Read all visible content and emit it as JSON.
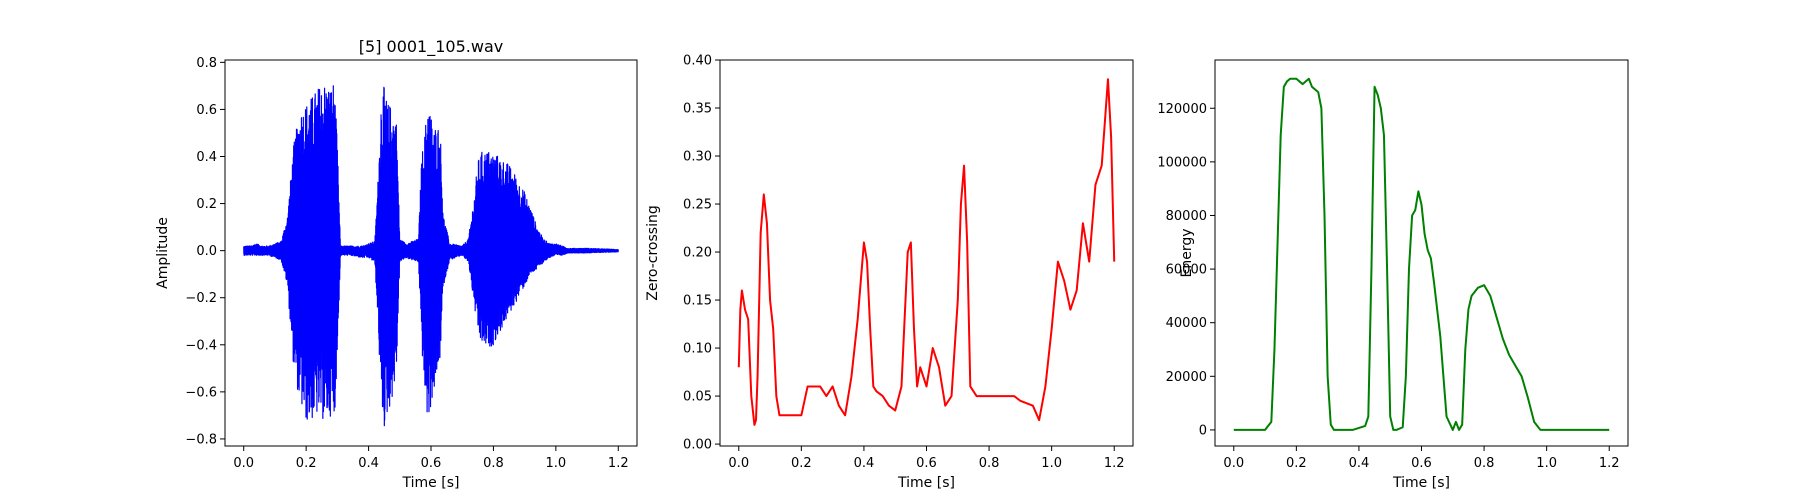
{
  "chart_data": [
    {
      "type": "line",
      "title": "[5] 0001_105.wav",
      "xlabel": "Time [s]",
      "ylabel": "Amplitude",
      "xlim": [
        -0.06,
        1.26
      ],
      "ylim": [
        -0.83,
        0.81
      ],
      "xticks": [
        0.0,
        0.2,
        0.4,
        0.6,
        0.8,
        1.0,
        1.2
      ],
      "xtick_labels": [
        "0.0",
        "0.2",
        "0.4",
        "0.6",
        "0.8",
        "1.0",
        "1.2"
      ],
      "yticks": [
        -0.8,
        -0.6,
        -0.4,
        -0.2,
        0.0,
        0.2,
        0.4,
        0.6,
        0.8
      ],
      "ytick_labels": [
        "−0.8",
        "−0.6",
        "−0.4",
        "−0.2",
        "0.0",
        "0.2",
        "0.4",
        "0.6",
        "0.8"
      ],
      "grid": false,
      "color": "#0000ff",
      "envelope": {
        "t": [
          0.0,
          0.02,
          0.04,
          0.06,
          0.08,
          0.1,
          0.12,
          0.14,
          0.16,
          0.18,
          0.2,
          0.22,
          0.24,
          0.26,
          0.28,
          0.29,
          0.3,
          0.31,
          0.34,
          0.38,
          0.4,
          0.42,
          0.43,
          0.44,
          0.45,
          0.46,
          0.47,
          0.48,
          0.49,
          0.5,
          0.52,
          0.54,
          0.56,
          0.57,
          0.58,
          0.59,
          0.6,
          0.61,
          0.62,
          0.63,
          0.64,
          0.66,
          0.7,
          0.72,
          0.74,
          0.75,
          0.76,
          0.78,
          0.8,
          0.82,
          0.84,
          0.86,
          0.88,
          0.9,
          0.92,
          0.94,
          0.96,
          0.98,
          1.0,
          1.02,
          1.04,
          1.1,
          1.2
        ],
        "upper": [
          0.02,
          0.02,
          0.03,
          0.02,
          0.02,
          0.03,
          0.04,
          0.15,
          0.45,
          0.6,
          0.63,
          0.66,
          0.7,
          0.72,
          0.7,
          0.73,
          0.45,
          0.02,
          0.02,
          0.02,
          0.03,
          0.04,
          0.3,
          0.65,
          0.7,
          0.63,
          0.62,
          0.6,
          0.55,
          0.05,
          0.03,
          0.04,
          0.05,
          0.4,
          0.5,
          0.65,
          0.58,
          0.52,
          0.55,
          0.5,
          0.15,
          0.03,
          0.02,
          0.05,
          0.25,
          0.38,
          0.42,
          0.43,
          0.42,
          0.4,
          0.38,
          0.35,
          0.3,
          0.25,
          0.18,
          0.1,
          0.05,
          0.03,
          0.03,
          0.02,
          0.01,
          0.01,
          0.005
        ],
        "lower": [
          -0.02,
          -0.02,
          -0.02,
          -0.02,
          -0.02,
          -0.03,
          -0.04,
          -0.15,
          -0.5,
          -0.65,
          -0.73,
          -0.72,
          -0.7,
          -0.73,
          -0.7,
          -0.74,
          -0.45,
          -0.02,
          -0.02,
          -0.03,
          -0.03,
          -0.05,
          -0.3,
          -0.65,
          -0.76,
          -0.7,
          -0.66,
          -0.6,
          -0.5,
          -0.05,
          -0.03,
          -0.04,
          -0.05,
          -0.4,
          -0.62,
          -0.74,
          -0.66,
          -0.6,
          -0.55,
          -0.45,
          -0.15,
          -0.04,
          -0.02,
          -0.05,
          -0.25,
          -0.35,
          -0.4,
          -0.42,
          -0.4,
          -0.35,
          -0.3,
          -0.25,
          -0.2,
          -0.15,
          -0.1,
          -0.08,
          -0.05,
          -0.03,
          -0.02,
          -0.02,
          -0.01,
          -0.01,
          -0.005
        ]
      }
    },
    {
      "type": "line",
      "xlabel": "Time [s]",
      "ylabel": "Zero-crossing",
      "xlim": [
        -0.06,
        1.26
      ],
      "ylim": [
        -0.002,
        0.4
      ],
      "xticks": [
        0.0,
        0.2,
        0.4,
        0.6,
        0.8,
        1.0,
        1.2
      ],
      "xtick_labels": [
        "0.0",
        "0.2",
        "0.4",
        "0.6",
        "0.8",
        "1.0",
        "1.2"
      ],
      "yticks": [
        0.0,
        0.05,
        0.1,
        0.15,
        0.2,
        0.25,
        0.3,
        0.35,
        0.4
      ],
      "ytick_labels": [
        "0.00",
        "0.05",
        "0.10",
        "0.15",
        "0.20",
        "0.25",
        "0.30",
        "0.35",
        "0.40"
      ],
      "grid": false,
      "color": "#ff0000",
      "x": [
        0.0,
        0.005,
        0.01,
        0.02,
        0.03,
        0.04,
        0.05,
        0.055,
        0.06,
        0.07,
        0.08,
        0.09,
        0.1,
        0.11,
        0.12,
        0.13,
        0.14,
        0.16,
        0.18,
        0.2,
        0.22,
        0.24,
        0.26,
        0.28,
        0.3,
        0.32,
        0.34,
        0.36,
        0.38,
        0.4,
        0.41,
        0.42,
        0.43,
        0.44,
        0.46,
        0.48,
        0.5,
        0.52,
        0.54,
        0.55,
        0.56,
        0.57,
        0.58,
        0.6,
        0.62,
        0.64,
        0.66,
        0.68,
        0.7,
        0.71,
        0.72,
        0.73,
        0.74,
        0.76,
        0.8,
        0.84,
        0.88,
        0.9,
        0.94,
        0.96,
        0.98,
        1.0,
        1.02,
        1.04,
        1.06,
        1.08,
        1.1,
        1.12,
        1.14,
        1.16,
        1.18,
        1.19,
        1.2
      ],
      "y": [
        0.08,
        0.14,
        0.16,
        0.14,
        0.13,
        0.05,
        0.02,
        0.025,
        0.07,
        0.22,
        0.26,
        0.23,
        0.15,
        0.12,
        0.05,
        0.03,
        0.03,
        0.03,
        0.03,
        0.03,
        0.06,
        0.06,
        0.06,
        0.05,
        0.06,
        0.04,
        0.03,
        0.07,
        0.13,
        0.21,
        0.19,
        0.12,
        0.06,
        0.055,
        0.05,
        0.04,
        0.035,
        0.06,
        0.2,
        0.21,
        0.12,
        0.06,
        0.08,
        0.06,
        0.1,
        0.08,
        0.04,
        0.05,
        0.15,
        0.25,
        0.29,
        0.21,
        0.06,
        0.05,
        0.05,
        0.05,
        0.05,
        0.045,
        0.04,
        0.025,
        0.06,
        0.12,
        0.19,
        0.17,
        0.14,
        0.16,
        0.23,
        0.19,
        0.27,
        0.29,
        0.38,
        0.32,
        0.19
      ]
    },
    {
      "type": "line",
      "xlabel": "Time [s]",
      "ylabel": "Energy",
      "xlim": [
        -0.06,
        1.26
      ],
      "ylim": [
        -6000,
        138000
      ],
      "xticks": [
        0.0,
        0.2,
        0.4,
        0.6,
        0.8,
        1.0,
        1.2
      ],
      "xtick_labels": [
        "0.0",
        "0.2",
        "0.4",
        "0.6",
        "0.8",
        "1.0",
        "1.2"
      ],
      "yticks": [
        0,
        20000,
        40000,
        60000,
        80000,
        100000,
        120000
      ],
      "ytick_labels": [
        "0",
        "20000",
        "40000",
        "60000",
        "80000",
        "100000",
        "120000"
      ],
      "grid": false,
      "color": "#008000",
      "x": [
        0.0,
        0.1,
        0.12,
        0.13,
        0.14,
        0.15,
        0.16,
        0.17,
        0.18,
        0.2,
        0.21,
        0.22,
        0.24,
        0.25,
        0.26,
        0.27,
        0.28,
        0.29,
        0.3,
        0.31,
        0.32,
        0.38,
        0.42,
        0.43,
        0.44,
        0.45,
        0.46,
        0.47,
        0.48,
        0.49,
        0.5,
        0.51,
        0.52,
        0.54,
        0.55,
        0.56,
        0.57,
        0.58,
        0.59,
        0.6,
        0.61,
        0.62,
        0.63,
        0.64,
        0.65,
        0.66,
        0.68,
        0.7,
        0.71,
        0.72,
        0.73,
        0.74,
        0.75,
        0.76,
        0.78,
        0.8,
        0.82,
        0.84,
        0.86,
        0.88,
        0.9,
        0.92,
        0.94,
        0.96,
        0.98,
        1.0,
        1.2
      ],
      "y": [
        0,
        0,
        3000,
        30000,
        70000,
        110000,
        128000,
        130000,
        131000,
        131000,
        130000,
        129000,
        131000,
        128000,
        127000,
        126000,
        120000,
        80000,
        20000,
        2000,
        0,
        0,
        1500,
        5000,
        60000,
        128000,
        125000,
        120000,
        110000,
        60000,
        5000,
        0,
        0,
        1000,
        20000,
        60000,
        80000,
        82000,
        89000,
        84000,
        73000,
        67000,
        64000,
        55000,
        45000,
        35000,
        5000,
        0,
        3000,
        0,
        2000,
        30000,
        45000,
        50000,
        53000,
        54000,
        50000,
        42000,
        34000,
        28000,
        24000,
        20000,
        12000,
        3000,
        0,
        0,
        0
      ]
    }
  ]
}
